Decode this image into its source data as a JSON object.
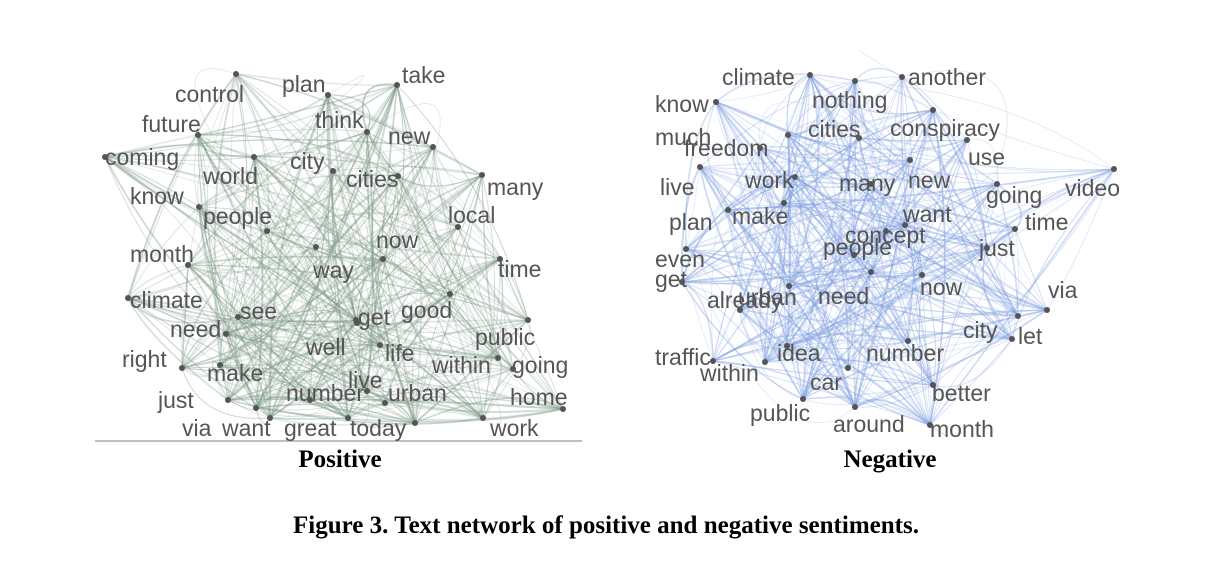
{
  "caption": "Figure 3. Text network of positive and negative sentiments.",
  "colors": {
    "positive_edges": "#7f9a88",
    "negative_edges": "#7f9fe0",
    "node": "#555555"
  },
  "panels": [
    {
      "id": "positive",
      "label": "Positive",
      "words": [
        "take",
        "control",
        "plan",
        "think",
        "future",
        "new",
        "coming",
        "city",
        "cities",
        "world",
        "many",
        "know",
        "people",
        "local",
        "now",
        "month",
        "way",
        "time",
        "climate",
        "see",
        "good",
        "get",
        "need",
        "public",
        "well",
        "life",
        "right",
        "within",
        "going",
        "make",
        "live",
        "just",
        "number",
        "urban",
        "home",
        "via",
        "want",
        "great",
        "today",
        "work"
      ]
    },
    {
      "id": "negative",
      "label": "Negative",
      "words": [
        "climate",
        "another",
        "know",
        "nothing",
        "cities",
        "conspiracy",
        "much",
        "freedom",
        "use",
        "live",
        "work",
        "many",
        "new",
        "video",
        "going",
        "plan",
        "make",
        "want",
        "time",
        "even",
        "concept",
        "people",
        "just",
        "get",
        "urban",
        "need",
        "now",
        "via",
        "already",
        "city",
        "let",
        "traffic",
        "idea",
        "number",
        "within",
        "car",
        "better",
        "public",
        "around",
        "month"
      ]
    }
  ]
}
